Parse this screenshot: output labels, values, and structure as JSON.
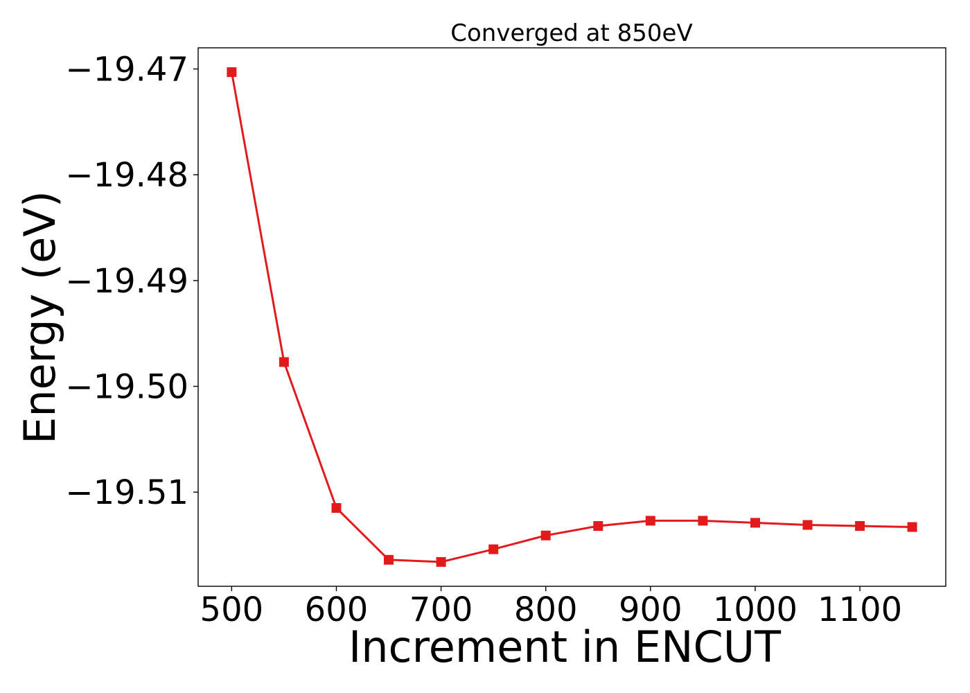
{
  "chart_data": {
    "type": "line",
    "title": "Converged at 850eV",
    "xlabel": "Increment in ENCUT",
    "ylabel": "Energy (eV)",
    "x": [
      500,
      550,
      600,
      650,
      700,
      750,
      800,
      850,
      900,
      950,
      1000,
      1050,
      1100,
      1150
    ],
    "series": [
      {
        "values": [
          -19.4703,
          -19.4977,
          -19.5115,
          -19.5164,
          -19.5166,
          -19.5154,
          -19.5141,
          -19.5132,
          -19.5127,
          -19.5127,
          -19.5129,
          -19.5131,
          -19.5132,
          -19.5133
        ],
        "color": "#e31a1c",
        "marker": "square"
      }
    ],
    "xlim": [
      468,
      1182
    ],
    "ylim": [
      -19.5189,
      -19.468
    ],
    "xticks": [
      500,
      600,
      700,
      800,
      900,
      1000,
      1100
    ],
    "xtick_labels": [
      "500",
      "600",
      "700",
      "800",
      "900",
      "1000",
      "1100"
    ],
    "yticks": [
      -19.47,
      -19.48,
      -19.49,
      -19.5,
      -19.51
    ],
    "ytick_labels": [
      "−19.47",
      "−19.48",
      "−19.49",
      "−19.50",
      "−19.51"
    ],
    "grid": false,
    "legend": false
  }
}
